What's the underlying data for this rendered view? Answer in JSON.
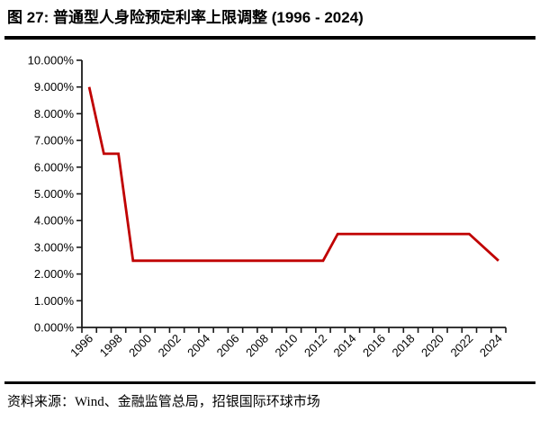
{
  "page": {
    "title": "图 27: 普通型人身险预定利率上限调整 (1996 - 2024)",
    "source": "资料来源：Wind、金融监管总局，招银国际环球市场"
  },
  "chart_data": {
    "type": "line",
    "title": "普通型人身险预定利率上限调整 (1996 - 2024)",
    "unit": "%",
    "points": [
      [
        1996,
        9.0
      ],
      [
        1997,
        6.5
      ],
      [
        1998,
        6.5
      ],
      [
        1999,
        2.5
      ],
      [
        2012,
        2.5
      ],
      [
        2013,
        3.5
      ],
      [
        2022,
        3.5
      ],
      [
        2024,
        2.5
      ]
    ],
    "line_color": "#C00000",
    "axis_color": "#1a1a1a",
    "x_axis": {
      "min_year": 1996,
      "max_year": 2024,
      "tick_labels": [
        "1996",
        "1998",
        "2000",
        "2002",
        "2004",
        "2006",
        "2008",
        "2010",
        "2012",
        "2014",
        "2016",
        "2018",
        "2020",
        "2022",
        "2024"
      ],
      "label_rotation_deg": -45
    },
    "y_axis": {
      "min": 0,
      "max": 10,
      "step": 1,
      "tick_labels": [
        "0.000%",
        "1.000%",
        "2.000%",
        "3.000%",
        "4.000%",
        "5.000%",
        "6.000%",
        "7.000%",
        "8.000%",
        "9.000%",
        "10.000%"
      ]
    },
    "grid": false,
    "legend": false
  }
}
